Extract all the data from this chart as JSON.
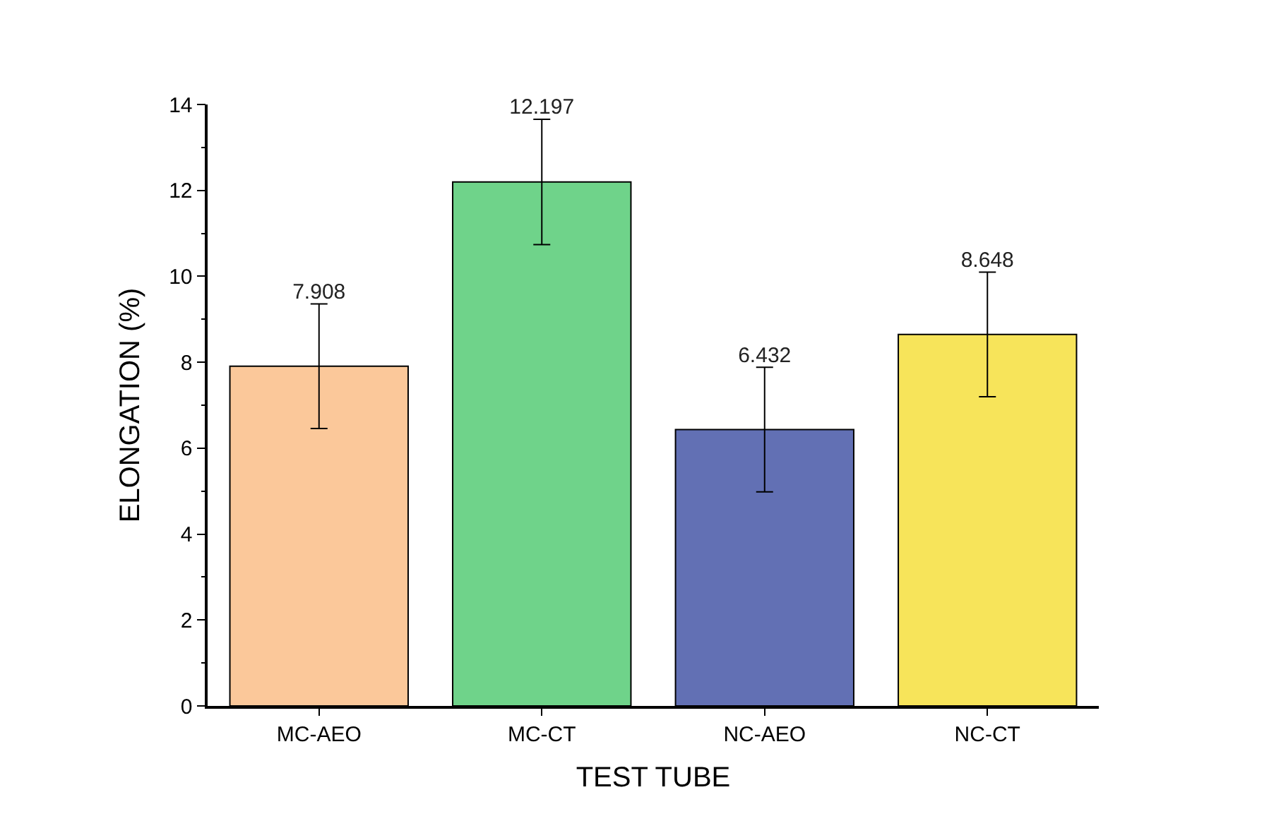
{
  "chart_data": {
    "type": "bar",
    "xlabel": "TEST TUBE",
    "ylabel": "ELONGATION (%)",
    "categories": [
      "MC-AEO",
      "MC-CT",
      "NC-AEO",
      "NC-CT"
    ],
    "values": [
      7.908,
      12.197,
      6.432,
      8.648
    ],
    "colors": [
      "#fbc89a",
      "#6fd38a",
      "#6270b4",
      "#f7e45a"
    ],
    "errors": [
      1.45,
      1.46,
      1.45,
      1.45
    ],
    "data_labels": true,
    "ylim": [
      0,
      14
    ],
    "yticks": [
      0,
      2,
      4,
      6,
      8,
      10,
      12,
      14
    ]
  }
}
